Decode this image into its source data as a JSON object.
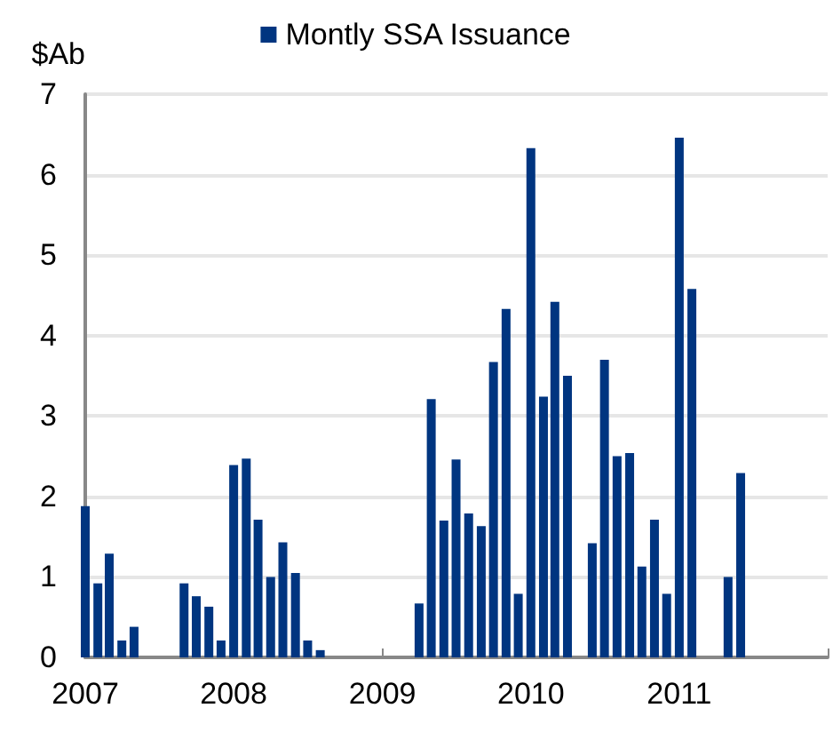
{
  "chart_data": {
    "type": "bar",
    "ylabel": "$Ab",
    "x": [
      "2007-01",
      "2007-02",
      "2007-03",
      "2007-04",
      "2007-05",
      "2007-09",
      "2007-10",
      "2007-11",
      "2007-12",
      "2008-01",
      "2008-02",
      "2008-03",
      "2008-04",
      "2008-05",
      "2008-06",
      "2008-07",
      "2008-08",
      "2009-04",
      "2009-05",
      "2009-06",
      "2009-07",
      "2009-08",
      "2009-09",
      "2009-10",
      "2009-11",
      "2009-12",
      "2010-01",
      "2010-02",
      "2010-03",
      "2010-04",
      "2010-06",
      "2010-07",
      "2010-08",
      "2010-09",
      "2010-10",
      "2010-11",
      "2010-12",
      "2011-01",
      "2011-02",
      "2011-05",
      "2011-06"
    ],
    "series": [
      {
        "name": "Montly SSA Issuance",
        "color": "#003580",
        "values": [
          1.88,
          0.92,
          1.29,
          0.21,
          0.38,
          0.92,
          0.76,
          0.63,
          0.21,
          2.39,
          2.47,
          1.71,
          1.0,
          1.43,
          1.05,
          0.21,
          0.09,
          0.67,
          3.21,
          1.7,
          2.46,
          1.79,
          1.63,
          3.67,
          4.33,
          0.79,
          6.33,
          3.24,
          4.42,
          3.5,
          1.42,
          3.7,
          2.5,
          2.54,
          1.13,
          1.71,
          0.79,
          6.46,
          4.58,
          1.0,
          2.29
        ]
      }
    ],
    "xlim": [
      "2007-01",
      "2012-01"
    ],
    "xticks": [
      {
        "value": "2007-01",
        "label": "2007"
      },
      {
        "value": "2008-01",
        "label": "2008"
      },
      {
        "value": "2009-01",
        "label": "2009"
      },
      {
        "value": "2010-01",
        "label": "2010"
      },
      {
        "value": "2011-01",
        "label": "2011"
      },
      {
        "value": "2012-01",
        "label": null
      }
    ],
    "ylim": [
      0,
      7
    ],
    "yticks": [
      0,
      1,
      2,
      3,
      4,
      5,
      6,
      7
    ],
    "grid": "y",
    "legend": "top"
  }
}
